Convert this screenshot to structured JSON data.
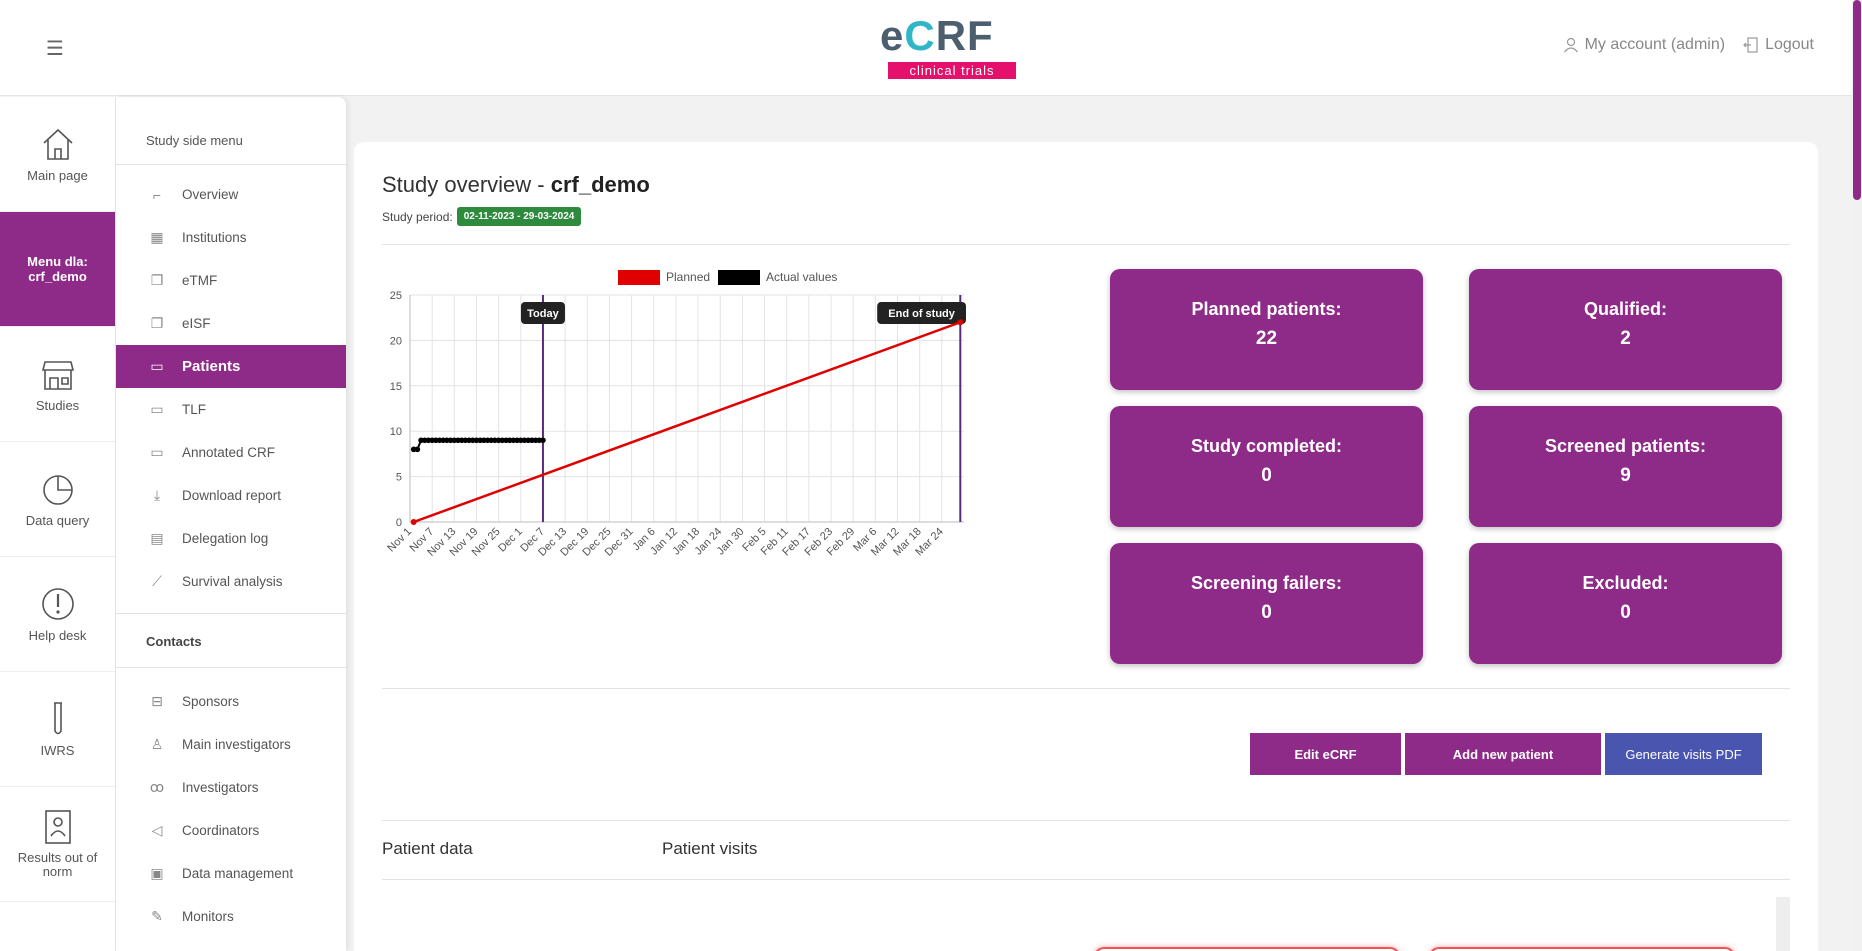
{
  "header": {
    "logo_word_e": "e",
    "logo_word_c": "C",
    "logo_word_rf": "RF",
    "logo_tagline": "clinical trials",
    "account": "My account (admin)",
    "logout": "Logout"
  },
  "rail": [
    {
      "label": "Main page",
      "icon": "home-icon"
    },
    {
      "label": "Menu dla: crf_demo",
      "icon": "none"
    },
    {
      "label": "Studies",
      "icon": "store-icon"
    },
    {
      "label": "Data query",
      "icon": "pie-icon"
    },
    {
      "label": "Help desk",
      "icon": "exclamation-icon"
    },
    {
      "label": "IWRS",
      "icon": "test-tube-icon"
    },
    {
      "label": "Results out of norm",
      "icon": "report-icon"
    }
  ],
  "sidemenu": {
    "heading": "Study side menu",
    "items": [
      "Overview",
      "Institutions",
      "eTMF",
      "eISF",
      "Patients",
      "TLF",
      "Annotated CRF",
      "Download report",
      "Delegation log",
      "Survival analysis"
    ],
    "contacts_heading": "Contacts",
    "contacts": [
      "Sponsors",
      "Main investigators",
      "Investigators",
      "Coordinators",
      "Data management",
      "Monitors"
    ]
  },
  "main": {
    "title_prefix": "Study overview - ",
    "title_study": "crf_demo",
    "period_label": "Study period:",
    "period_value": "02-11-2023 - 29-03-2024",
    "stats": [
      {
        "label": "Planned patients:",
        "value": "22"
      },
      {
        "label": "Qualified:",
        "value": "2"
      },
      {
        "label": "Study completed:",
        "value": "0"
      },
      {
        "label": "Screened patients:",
        "value": "9"
      },
      {
        "label": "Screening failers:",
        "value": "0"
      },
      {
        "label": "Excluded:",
        "value": "0"
      }
    ],
    "buttons": {
      "edit": "Edit eCRF",
      "add": "Add new patient",
      "pdf": "Generate visits PDF"
    },
    "tabs": [
      "Patient data",
      "Patient visits"
    ]
  },
  "chart_data": {
    "type": "line",
    "x_ticks": [
      "Nov 1",
      "Nov 7",
      "Nov 13",
      "Nov 19",
      "Nov 25",
      "Dec 1",
      "Dec 7",
      "Dec 13",
      "Dec 19",
      "Dec 25",
      "Dec 31",
      "Jan 6",
      "Jan 12",
      "Jan 18",
      "Jan 24",
      "Jan 30",
      "Feb 5",
      "Feb 11",
      "Feb 17",
      "Feb 23",
      "Feb 29",
      "Mar 6",
      "Mar 12",
      "Mar 18",
      "Mar 24"
    ],
    "ylim": [
      0,
      25
    ],
    "y_ticks": [
      0,
      5,
      10,
      15,
      20,
      25
    ],
    "series": [
      {
        "name": "Planned",
        "color": "#e00000",
        "x": [
          "2023-11-02",
          "2024-03-29"
        ],
        "y": [
          0,
          22
        ]
      },
      {
        "name": "Actual values",
        "color": "#000000",
        "x": [
          "2023-11-02",
          "2023-11-03",
          "2023-11-04",
          "2023-11-05",
          "2023-11-06",
          "2023-11-07",
          "2023-11-08",
          "2023-11-09",
          "2023-11-10",
          "2023-11-11",
          "2023-11-12",
          "2023-11-13",
          "2023-11-14",
          "2023-11-15",
          "2023-11-16",
          "2023-11-17",
          "2023-11-18",
          "2023-11-19",
          "2023-11-20",
          "2023-11-21",
          "2023-11-22",
          "2023-11-23",
          "2023-11-24",
          "2023-11-25",
          "2023-11-26",
          "2023-11-27",
          "2023-11-28",
          "2023-11-29",
          "2023-11-30",
          "2023-12-01",
          "2023-12-02",
          "2023-12-03",
          "2023-12-04",
          "2023-12-05",
          "2023-12-06",
          "2023-12-07"
        ],
        "y": [
          8,
          8,
          9,
          9,
          9,
          9,
          9,
          9,
          9,
          9,
          9,
          9,
          9,
          9,
          9,
          9,
          9,
          9,
          9,
          9,
          9,
          9,
          9,
          9,
          9,
          9,
          9,
          9,
          9,
          9,
          9,
          9,
          9,
          9,
          9,
          9
        ]
      }
    ],
    "annotations": [
      {
        "label": "Today",
        "x": "2023-12-07"
      },
      {
        "label": "End of study",
        "x": "2024-03-29"
      }
    ],
    "legend": "top-center",
    "grid": true
  }
}
